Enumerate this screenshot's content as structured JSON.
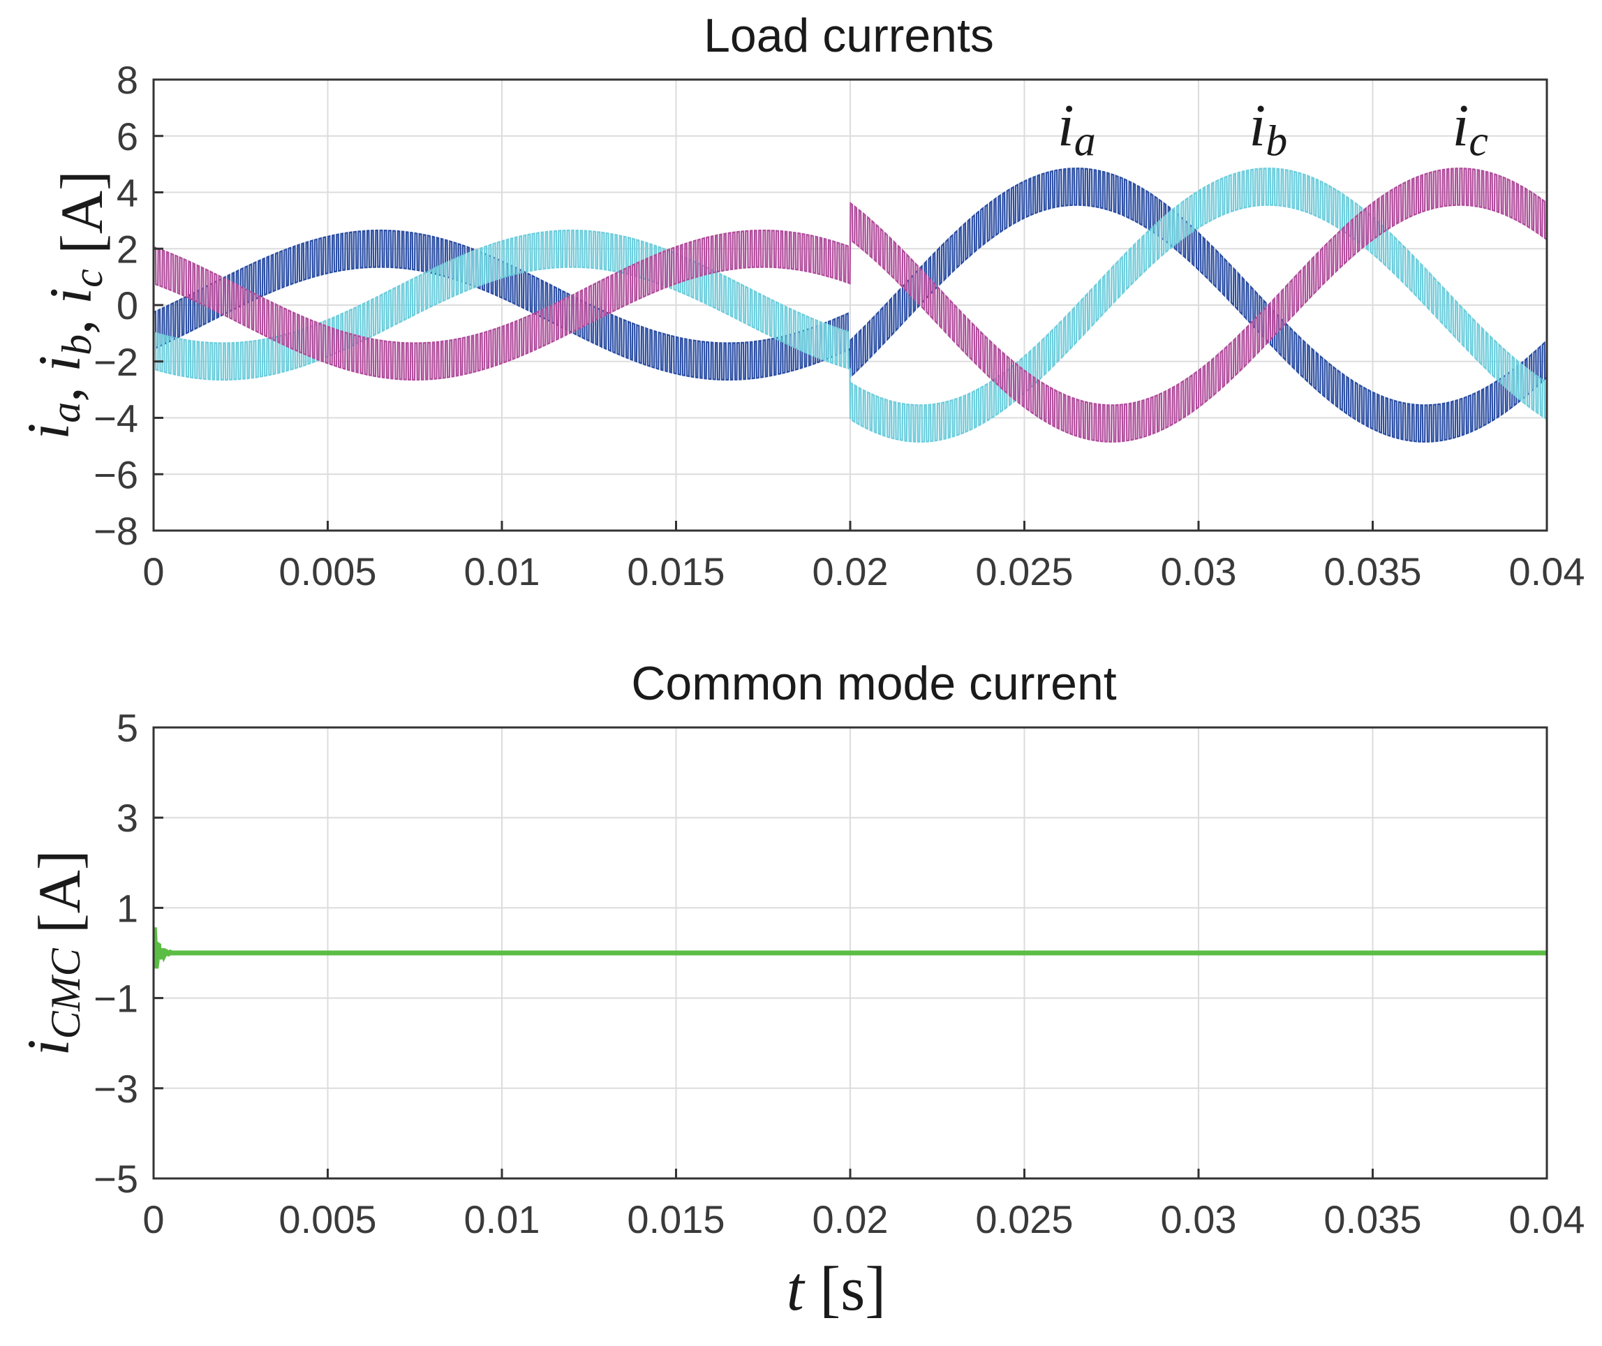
{
  "chart_data": [
    {
      "type": "line",
      "title": "Load currents",
      "ylabel": {
        "parts": [
          {
            "t": "i",
            "s": "a"
          },
          {
            "t": ", "
          },
          {
            "t": "i",
            "s": "b"
          },
          {
            "t": ", "
          },
          {
            "t": "i",
            "s": "c"
          },
          {
            "t": " [A]"
          }
        ]
      },
      "xlabel": "",
      "xlim": [
        0,
        0.04
      ],
      "ylim": [
        -8,
        8
      ],
      "xticks": [
        0,
        0.005,
        0.01,
        0.015,
        0.02,
        0.025,
        0.03,
        0.035,
        0.04
      ],
      "xtick_labels": [
        "0",
        "0.005",
        "0.01",
        "0.015",
        "0.02",
        "0.025",
        "0.03",
        "0.035",
        "0.04"
      ],
      "yticks": [
        8,
        6,
        4,
        2,
        0,
        -2,
        -4,
        -6,
        -8
      ],
      "ytick_labels": [
        "8",
        "6",
        "4",
        "2",
        "0",
        "−2",
        "−4",
        "−6",
        "−8"
      ],
      "grid": true,
      "series": [
        {
          "name": "i_a",
          "label": {
            "main": "i",
            "sub": "a"
          },
          "label_at": [
            0.0265,
            6.4
          ],
          "color": "#2b4ea3",
          "model": "sinusoid with PWM ripple",
          "frequency_hz": 50,
          "amplitude_before_A": 2.0,
          "amplitude_after_A": 4.2,
          "step_time_s": 0.02,
          "peak_time_s": 0.0265,
          "ripple_peak_to_peak_A": 1.3
        },
        {
          "name": "i_b",
          "label": {
            "main": "i",
            "sub": "b"
          },
          "label_at": [
            0.032,
            6.4
          ],
          "color": "#6ccddc",
          "model": "sinusoid with PWM ripple",
          "frequency_hz": 50,
          "amplitude_before_A": 2.0,
          "amplitude_after_A": 4.2,
          "step_time_s": 0.02,
          "peak_time_s": 0.032,
          "ripple_peak_to_peak_A": 1.3
        },
        {
          "name": "i_c",
          "label": {
            "main": "i",
            "sub": "c"
          },
          "label_at": [
            0.0378,
            6.4
          ],
          "color": "#b04c9b",
          "model": "sinusoid with PWM ripple",
          "frequency_hz": 50,
          "amplitude_before_A": 2.0,
          "amplitude_after_A": 4.2,
          "step_time_s": 0.02,
          "peak_time_s": 0.0375,
          "ripple_peak_to_peak_A": 1.3
        }
      ]
    },
    {
      "type": "line",
      "title": "Common mode current",
      "ylabel": {
        "parts": [
          {
            "t": "i",
            "s": "CMC"
          },
          {
            "t": " [A]"
          }
        ]
      },
      "xlabel": {
        "parts": [
          {
            "t": "t"
          },
          {
            "t": " [s]"
          }
        ]
      },
      "xlim": [
        0,
        0.04
      ],
      "ylim": [
        -5,
        5
      ],
      "xticks": [
        0,
        0.005,
        0.01,
        0.015,
        0.02,
        0.025,
        0.03,
        0.035,
        0.04
      ],
      "xtick_labels": [
        "0",
        "0.005",
        "0.01",
        "0.015",
        "0.02",
        "0.025",
        "0.03",
        "0.035",
        "0.04"
      ],
      "yticks": [
        5,
        3,
        1,
        -1,
        -3,
        -5
      ],
      "ytick_labels": [
        "5",
        "3",
        "1",
        "−1",
        "−3",
        "−5"
      ],
      "grid": true,
      "series": [
        {
          "name": "i_CMC",
          "color": "#5cbd45",
          "model": "near zero with initial transient",
          "steady_value_A": 0.0,
          "initial_transient_peak_A": 0.7,
          "transient_duration_s": 0.0005
        }
      ]
    }
  ]
}
